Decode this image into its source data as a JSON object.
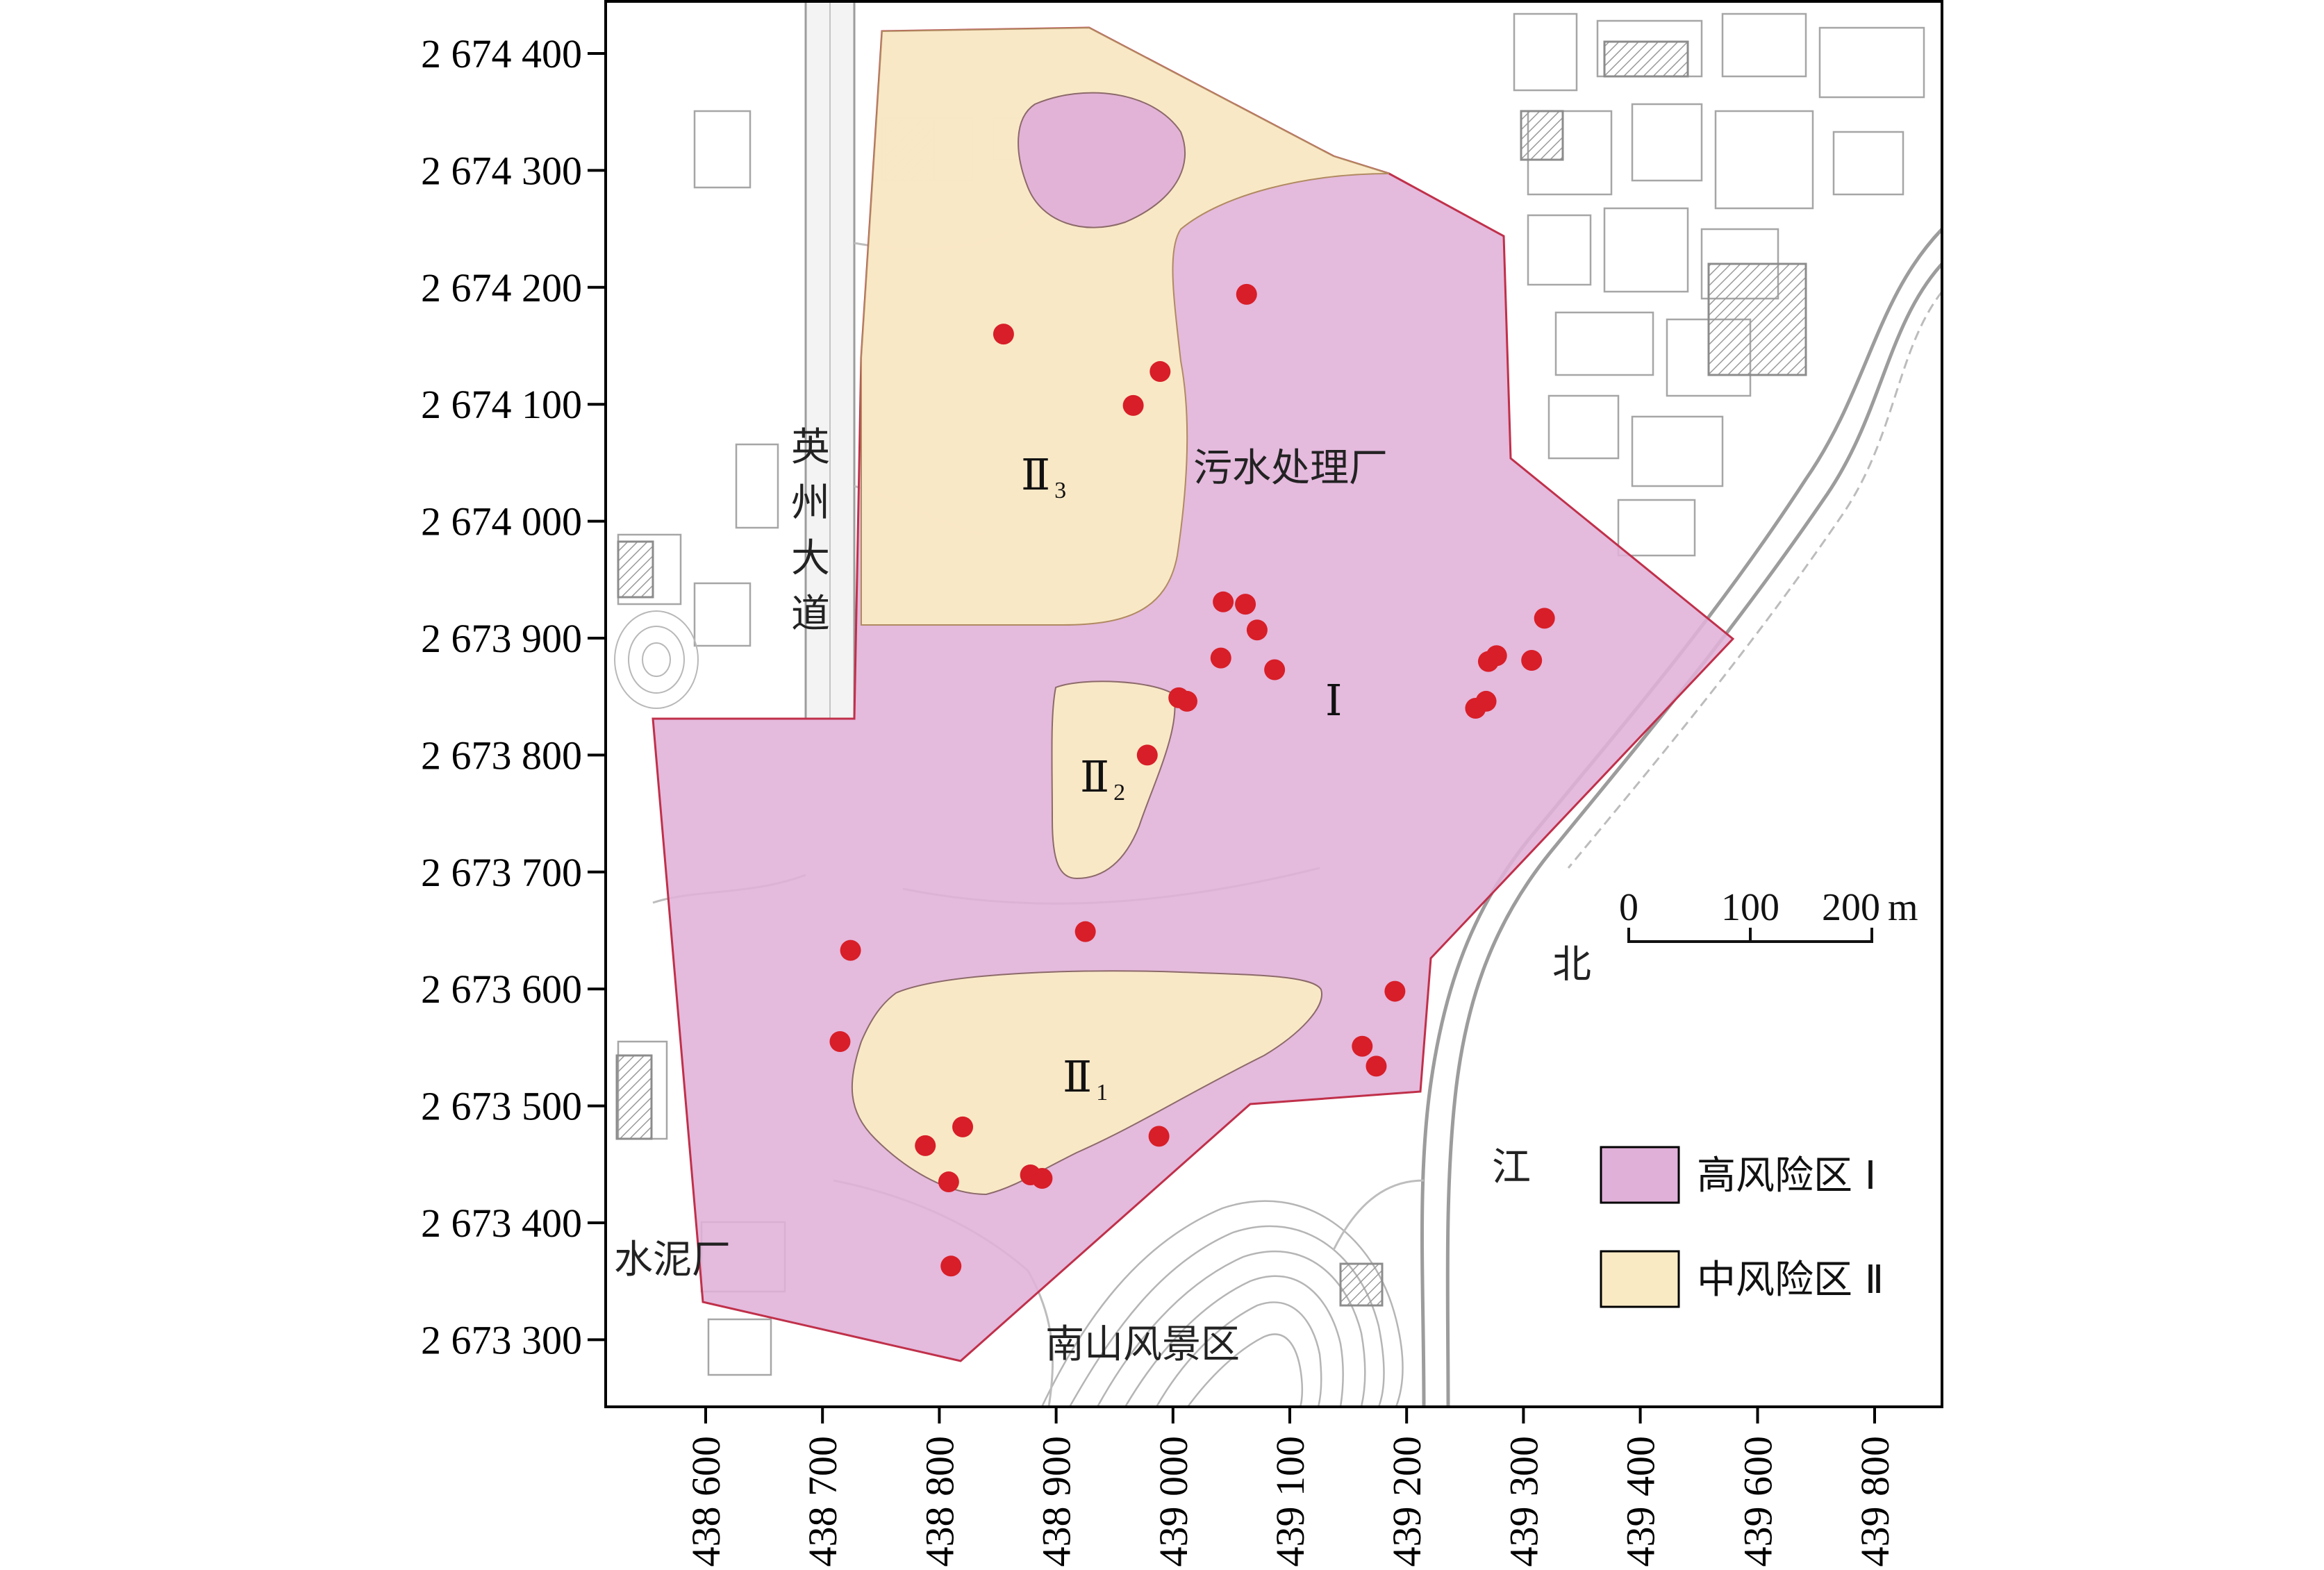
{
  "y_ticks": [
    {
      "label": "2 674 400",
      "value": 2674400
    },
    {
      "label": "2 674 300",
      "value": 2674300
    },
    {
      "label": "2 674 200",
      "value": 2674200
    },
    {
      "label": "2 674 100",
      "value": 2674100
    },
    {
      "label": "2 674 000",
      "value": 2674000
    },
    {
      "label": "2 673 900",
      "value": 2673900
    },
    {
      "label": "2 673 800",
      "value": 2673800
    },
    {
      "label": "2 673 700",
      "value": 2673700
    },
    {
      "label": "2 673 600",
      "value": 2673600
    },
    {
      "label": "2 673 500",
      "value": 2673500
    },
    {
      "label": "2 673 400",
      "value": 2673400
    },
    {
      "label": "2 673 300",
      "value": 2673300
    }
  ],
  "x_ticks": [
    {
      "label": "438 600",
      "value": 438600
    },
    {
      "label": "438 700",
      "value": 438700
    },
    {
      "label": "438 800",
      "value": 438800
    },
    {
      "label": "438 900",
      "value": 438900
    },
    {
      "label": "439 000",
      "value": 439000
    },
    {
      "label": "439 100",
      "value": 439100
    },
    {
      "label": "439 200",
      "value": 439200
    },
    {
      "label": "439 300",
      "value": 439300
    },
    {
      "label": "439 400",
      "value": 439400
    },
    {
      "label": "439 600",
      "value": 439600
    },
    {
      "label": "439 800",
      "value": 439800
    }
  ],
  "place_labels": {
    "road_chars": [
      "英",
      "州",
      "大",
      "道"
    ],
    "sewage_plant": "污水处理厂",
    "cement_plant": "水泥厂",
    "nanshan": "南山风景区",
    "river_north": "北",
    "river_jiang": "江"
  },
  "zones": {
    "high": {
      "numeral": "Ⅰ",
      "color": "#e0b0d8"
    },
    "medium": [
      {
        "numeral": "Ⅱ",
        "sub": "1"
      },
      {
        "numeral": "Ⅱ",
        "sub": "2"
      },
      {
        "numeral": "Ⅱ",
        "sub": "3"
      }
    ],
    "medium_color": "#faeac4",
    "boundary_color": "#c0304a"
  },
  "sample_point_color": "#d81e28",
  "sample_points": [
    {
      "x": 439063,
      "y": 2674194
    },
    {
      "x": 438855,
      "y": 2674160
    },
    {
      "x": 438989,
      "y": 2674128
    },
    {
      "x": 438966,
      "y": 2674099
    },
    {
      "x": 439043,
      "y": 2673931
    },
    {
      "x": 439062,
      "y": 2673929
    },
    {
      "x": 439072,
      "y": 2673907
    },
    {
      "x": 439041,
      "y": 2673883
    },
    {
      "x": 439087,
      "y": 2673873
    },
    {
      "x": 439005,
      "y": 2673849
    },
    {
      "x": 439012,
      "y": 2673846
    },
    {
      "x": 438978,
      "y": 2673800
    },
    {
      "x": 439318,
      "y": 2673917
    },
    {
      "x": 439277,
      "y": 2673885
    },
    {
      "x": 439270,
      "y": 2673880
    },
    {
      "x": 439307,
      "y": 2673881
    },
    {
      "x": 439268,
      "y": 2673846
    },
    {
      "x": 439259,
      "y": 2673840
    },
    {
      "x": 438724,
      "y": 2673633
    },
    {
      "x": 438925,
      "y": 2673649
    },
    {
      "x": 439190,
      "y": 2673598
    },
    {
      "x": 439162,
      "y": 2673551
    },
    {
      "x": 439174,
      "y": 2673534
    },
    {
      "x": 438715,
      "y": 2673555
    },
    {
      "x": 438820,
      "y": 2673482
    },
    {
      "x": 438788,
      "y": 2673466
    },
    {
      "x": 438988,
      "y": 2673474
    },
    {
      "x": 438878,
      "y": 2673441
    },
    {
      "x": 438888,
      "y": 2673438
    },
    {
      "x": 438808,
      "y": 2673435
    },
    {
      "x": 438810,
      "y": 2673363
    }
  ],
  "scale_bar": {
    "labels": [
      "0",
      "100",
      "200"
    ],
    "unit": "m"
  },
  "legend": [
    {
      "label": "高风险区 Ⅰ",
      "color": "#e0b0d8"
    },
    {
      "label": "中风险区 Ⅱ",
      "color": "#faeac4"
    }
  ]
}
